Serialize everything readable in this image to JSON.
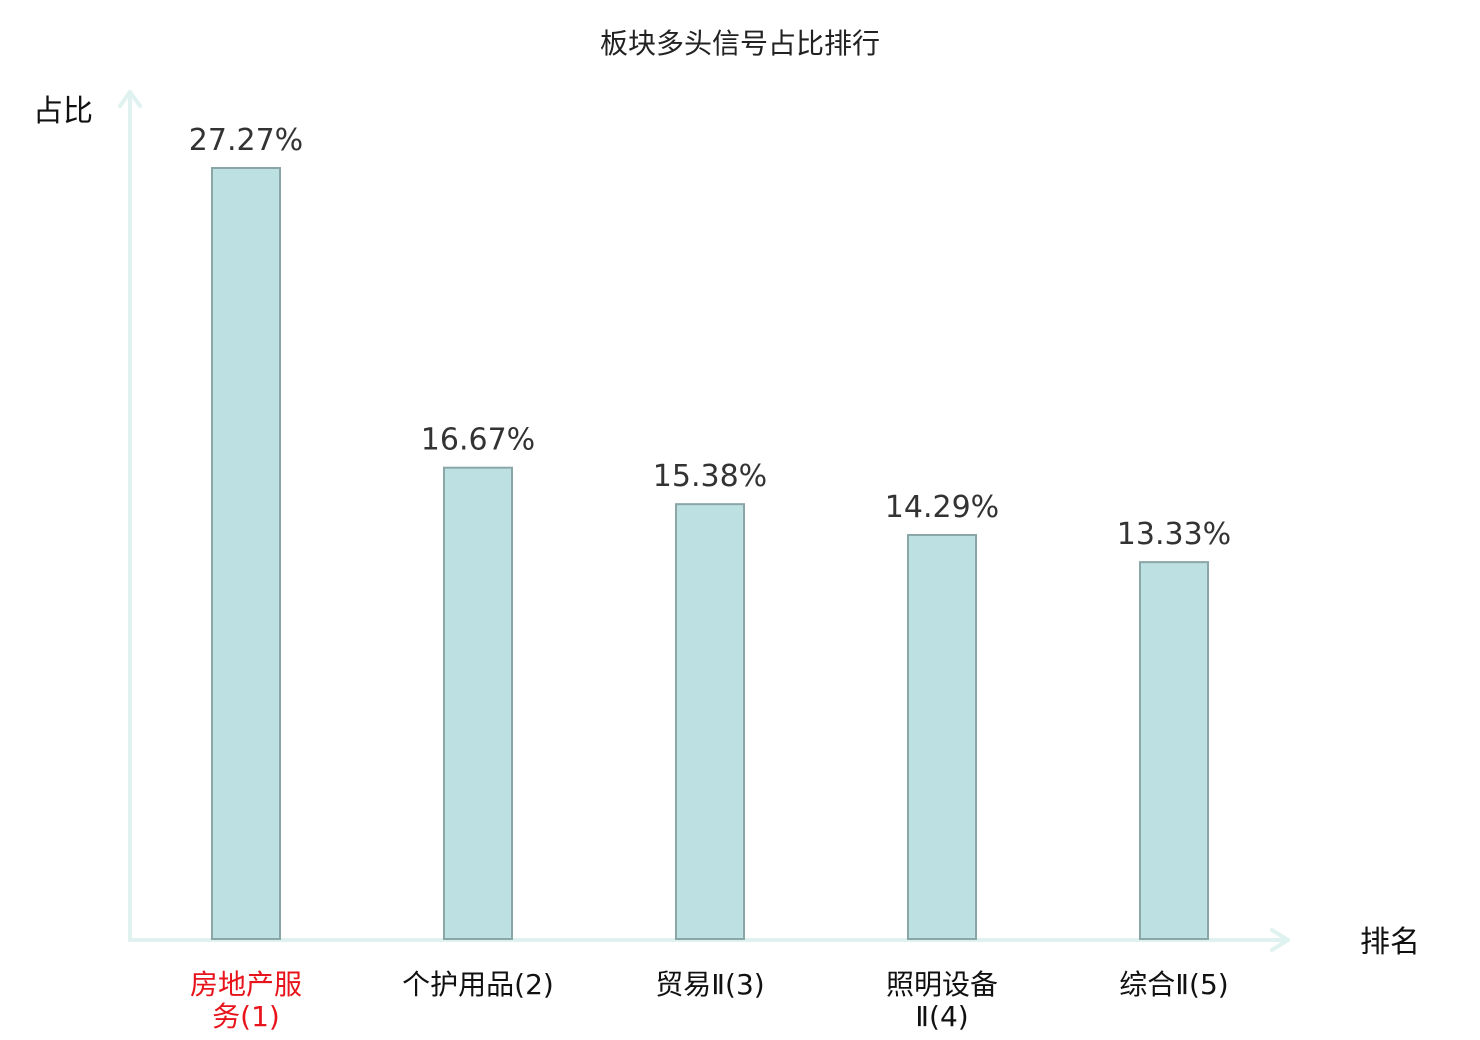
{
  "chart_data": {
    "type": "bar",
    "title": "板块多头信号占比排行",
    "ylabel": "占比",
    "xlabel": "排名",
    "categories": [
      [
        "房地产服",
        "务(1)"
      ],
      [
        "个护用品(2)"
      ],
      [
        "贸易Ⅱ(3)"
      ],
      [
        "照明设备",
        "Ⅱ(4)"
      ],
      [
        "综合Ⅱ(5)"
      ]
    ],
    "values": [
      27.27,
      16.67,
      15.38,
      14.29,
      13.33
    ],
    "value_labels": [
      "27.27%",
      "16.67%",
      "15.38%",
      "14.29%",
      "13.33%"
    ],
    "ylim": [
      0,
      27.27
    ],
    "grid": false,
    "legend": "none",
    "highlight_index": 0,
    "colors": {
      "bar_fill": "#bde0e2",
      "bar_stroke": "#8aa6a6",
      "axis": "#e0f2ef",
      "highlight_label": "#e8141b",
      "text": "#111111"
    }
  }
}
